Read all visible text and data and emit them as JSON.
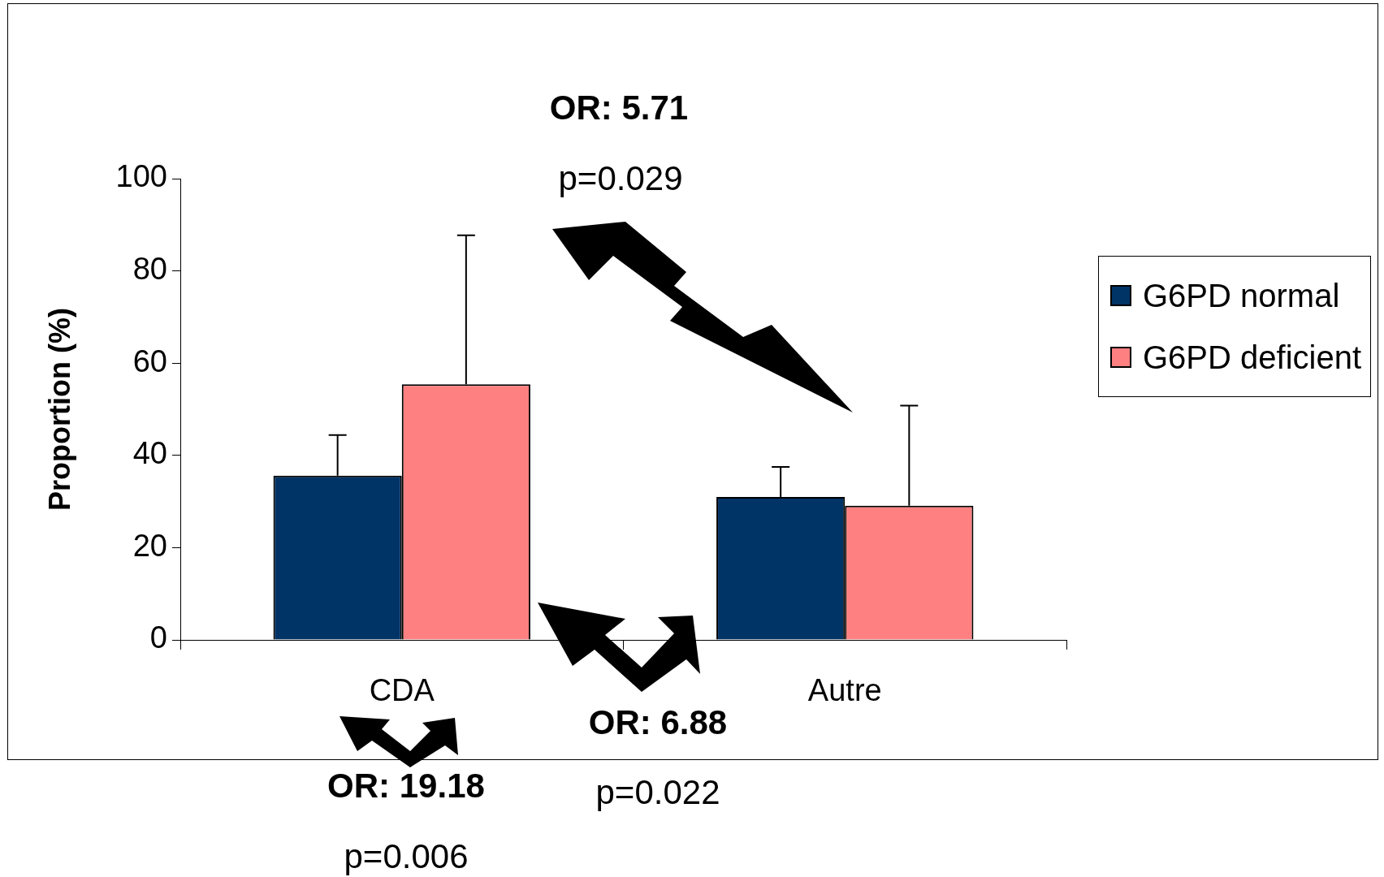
{
  "chart_data": {
    "type": "bar",
    "ylabel": "Proportion (%)",
    "categories": [
      "CDA",
      "Autre"
    ],
    "series": [
      {
        "name": "G6PD normal",
        "color": "#003366",
        "values": [
          35.6,
          31.0
        ],
        "errors": [
          [
            35.6,
            44.4
          ],
          [
            31.0,
            37.5
          ]
        ]
      },
      {
        "name": "G6PD deficient",
        "color": "#ff8080",
        "values": [
          55.4,
          29.1
        ],
        "errors": [
          [
            55.4,
            87.7
          ],
          [
            29.1,
            50.8
          ]
        ]
      }
    ],
    "ylim": [
      0,
      100
    ],
    "yticks": [
      0,
      20,
      40,
      60,
      80,
      100
    ],
    "grid": false,
    "legend": "right",
    "annotations": [
      "OR: 5.71",
      "p=0.029",
      "OR: 6.88",
      "p=0.022",
      "OR: 19.18",
      "p=0.006"
    ]
  }
}
